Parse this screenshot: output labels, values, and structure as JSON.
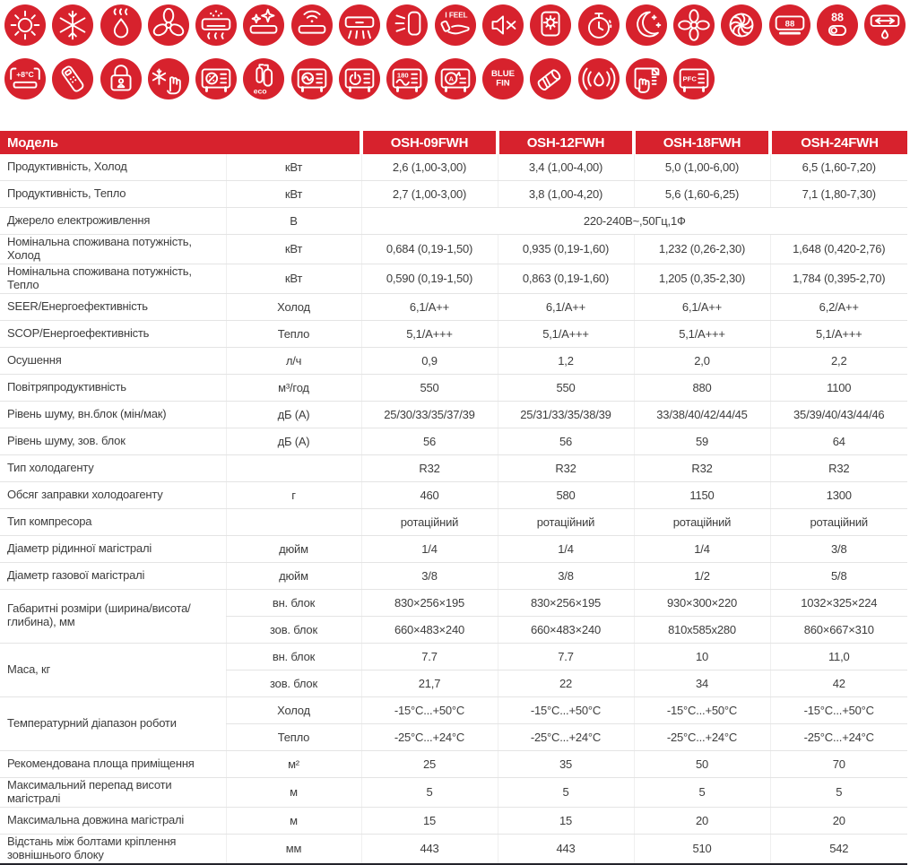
{
  "theme": {
    "accent": "#d7222d",
    "icon_glyph": "#ffffff",
    "header_text": "#ffffff",
    "text": "#3d3d3d",
    "row_line": "#e4e4e4",
    "col_line": "#efefef",
    "bottom_line": "#23232b"
  },
  "icons": {
    "rows": [
      [
        {
          "name": "sun-icon"
        },
        {
          "name": "snowflake-icon"
        },
        {
          "name": "dehumidify-drop-icon"
        },
        {
          "name": "fan-3blade-icon"
        },
        {
          "name": "ac-fresh-steam-icon"
        },
        {
          "name": "ac-self-clean-icon"
        },
        {
          "name": "ac-wifi-icon"
        },
        {
          "name": "ac-airflow-icon"
        },
        {
          "name": "panel-side-airflow-icon"
        },
        {
          "name": "i-feel-icon",
          "text": "I FEEL"
        },
        {
          "name": "mute-icon"
        },
        {
          "name": "self-diagnosis-icon"
        },
        {
          "name": "timer-icon"
        },
        {
          "name": "sleep-moon-icon"
        },
        {
          "name": "fan-4blade-icon"
        },
        {
          "name": "turbo-turbine-icon"
        },
        {
          "name": "led-display-icon",
          "text": "88"
        },
        {
          "name": "digits-toggle-icon",
          "text": "88"
        },
        {
          "name": "ac-swing-drain-icon"
        }
      ],
      [
        {
          "name": "plus-8c-heating-icon",
          "text": "+8°C"
        },
        {
          "name": "remote-control-icon"
        },
        {
          "name": "child-lock-icon"
        },
        {
          "name": "anti-frost-hand-icon"
        },
        {
          "name": "outdoor-unit-percent-icon",
          "text": "%"
        },
        {
          "name": "eco-compressor-icon",
          "text": "eco"
        },
        {
          "name": "outdoor-unit-wave-icon"
        },
        {
          "name": "outdoor-unit-power-icon"
        },
        {
          "name": "outdoor-unit-180-sine-icon",
          "text": "180"
        },
        {
          "name": "outdoor-unit-auto-icon",
          "text": "A"
        },
        {
          "name": "blue-fin-icon",
          "text": "BLUE FIN"
        },
        {
          "name": "insulated-pipe-icon"
        },
        {
          "name": "humidity-sensor-icon"
        },
        {
          "name": "easy-clean-filter-icon"
        },
        {
          "name": "pfc-icon",
          "text": "PFC"
        }
      ]
    ]
  },
  "table": {
    "header": {
      "model_label": "Модель",
      "models": [
        "OSH-09FWH",
        "OSH-12FWH",
        "OSH-18FWH",
        "OSH-24FWH"
      ]
    },
    "rows": [
      {
        "type": "simple",
        "name": "Продуктивність, Холод",
        "unit": "кВт",
        "values": [
          "2,6 (1,00-3,00)",
          "3,4 (1,00-4,00)",
          "5,0 (1,00-6,00)",
          "6,5 (1,60-7,20)"
        ]
      },
      {
        "type": "simple",
        "name": "Продуктивність, Тепло",
        "unit": "кВт",
        "values": [
          "2,7 (1,00-3,00)",
          "3,8 (1,00-4,20)",
          "5,6 (1,60-6,25)",
          "7,1 (1,80-7,30)"
        ]
      },
      {
        "type": "span",
        "name": "Джерело електроживлення",
        "unit": "В",
        "value": "220-240В~,50Гц,1Ф"
      },
      {
        "type": "simple",
        "name": "Номінальна споживана потужність, Холод",
        "unit": "кВт",
        "values": [
          "0,684 (0,19-1,50)",
          "0,935 (0,19-1,60)",
          "1,232 (0,26-2,30)",
          "1,648 (0,420-2,76)"
        ]
      },
      {
        "type": "simple",
        "name": "Номінальна споживана потужність, Тепло",
        "unit": "кВт",
        "values": [
          "0,590 (0,19-1,50)",
          "0,863 (0,19-1,60)",
          "1,205 (0,35-2,30)",
          "1,784 (0,395-2,70)"
        ]
      },
      {
        "type": "simple",
        "name": "SEER/Енергоефективність",
        "unit": "Холод",
        "values": [
          "6,1/A++",
          "6,1/A++",
          "6,1/A++",
          "6,2/A++"
        ]
      },
      {
        "type": "simple",
        "name": "SCOP/Енергоефективність",
        "unit": "Тепло",
        "values": [
          "5,1/A+++",
          "5,1/A+++",
          "5,1/A+++",
          "5,1/A+++"
        ]
      },
      {
        "type": "simple",
        "name": "Осушення",
        "unit": "л/ч",
        "values": [
          "0,9",
          "1,2",
          "2,0",
          "2,2"
        ]
      },
      {
        "type": "simple",
        "name": "Повітряпродуктивність",
        "unit": "м³/год",
        "values": [
          "550",
          "550",
          "880",
          "1100"
        ]
      },
      {
        "type": "simple",
        "name": "Рівень шуму, вн.блок (мін/мак)",
        "unit": "дБ (А)",
        "values": [
          "25/30/33/35/37/39",
          "25/31/33/35/38/39",
          "33/38/40/42/44/45",
          "35/39/40/43/44/46"
        ]
      },
      {
        "type": "simple",
        "name": "Рівень шуму, зов. блок",
        "unit": "дБ (А)",
        "values": [
          "56",
          "56",
          "59",
          "64"
        ]
      },
      {
        "type": "simple",
        "name": "Тип холодагенту",
        "unit": "",
        "values": [
          "R32",
          "R32",
          "R32",
          "R32"
        ]
      },
      {
        "type": "simple",
        "name": "Обсяг заправки холодоагенту",
        "unit": "г",
        "values": [
          "460",
          "580",
          "1150",
          "1300"
        ]
      },
      {
        "type": "simple",
        "name": "Тип компресора",
        "unit": "",
        "values": [
          "ротаційний",
          "ротаційний",
          "ротаційний",
          "ротаційний"
        ]
      },
      {
        "type": "simple",
        "name": "Діаметр рідинної магістралі",
        "unit": "дюйм",
        "values": [
          "1/4",
          "1/4",
          "1/4",
          "3/8"
        ]
      },
      {
        "type": "simple",
        "name": "Діаметр газової магістралі",
        "unit": "дюйм",
        "values": [
          "3/8",
          "3/8",
          "1/2",
          "5/8"
        ]
      },
      {
        "type": "group",
        "name": "Габаритні розміри (ширина/висота/глибина), мм",
        "subrows": [
          {
            "unit": "вн. блок",
            "values": [
              "830×256×195",
              "830×256×195",
              "930×300×220",
              "1032×325×224"
            ]
          },
          {
            "unit": "зов. блок",
            "values": [
              "660×483×240",
              "660×483×240",
              "810x585x280",
              "860×667×310"
            ]
          }
        ]
      },
      {
        "type": "group",
        "name": "Маса, кг",
        "subrows": [
          {
            "unit": "вн. блок",
            "values": [
              "7.7",
              "7.7",
              "10",
              "11,0"
            ]
          },
          {
            "unit": "зов. блок",
            "values": [
              "21,7",
              "22",
              "34",
              "42"
            ]
          }
        ]
      },
      {
        "type": "group",
        "name": "Температурний діапазон роботи",
        "subrows": [
          {
            "unit": "Холод",
            "values": [
              "-15°С...+50°С",
              "-15°С...+50°С",
              "-15°С...+50°С",
              "-15°С...+50°С"
            ]
          },
          {
            "unit": "Тепло",
            "values": [
              "-25°С...+24°С",
              "-25°С...+24°С",
              "-25°С...+24°С",
              "-25°С...+24°С"
            ]
          }
        ]
      },
      {
        "type": "simple",
        "name": "Рекомендована площа приміщення",
        "unit": "м²",
        "values": [
          "25",
          "35",
          "50",
          "70"
        ]
      },
      {
        "type": "simple",
        "name": "Максимальний перепад висоти магістралі",
        "unit": "м",
        "values": [
          "5",
          "5",
          "5",
          "5"
        ]
      },
      {
        "type": "simple",
        "name": "Максимальна довжина магістралі",
        "unit": "м",
        "values": [
          "15",
          "15",
          "20",
          "20"
        ]
      },
      {
        "type": "simple",
        "name": "Відстань між болтами кріплення зовнішнього блоку",
        "unit": "мм",
        "values": [
          "443",
          "443",
          "510",
          "542"
        ]
      }
    ]
  }
}
